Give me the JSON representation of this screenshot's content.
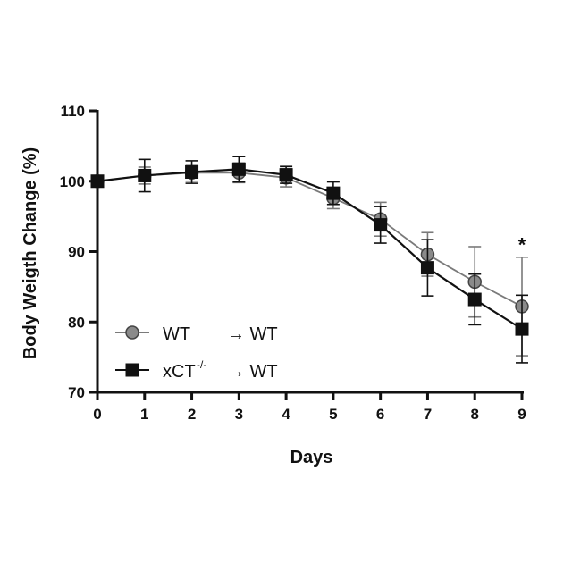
{
  "chart_data": {
    "type": "line",
    "title": "",
    "xlabel": "Days",
    "ylabel": "Body Weigth Change (%)",
    "xlim": [
      0,
      9
    ],
    "ylim": [
      70,
      110
    ],
    "x_ticks": [
      0,
      1,
      2,
      3,
      4,
      5,
      6,
      7,
      8,
      9
    ],
    "y_ticks": [
      70,
      80,
      90,
      100,
      110
    ],
    "grid": false,
    "legend_placement": "bottom-left",
    "x": [
      0,
      1,
      2,
      3,
      4,
      5,
      6,
      7,
      8,
      9
    ],
    "series": [
      {
        "name": "WT → WT",
        "legend_left": "WT",
        "legend_right": "→ WT",
        "legend_sup": "",
        "marker": "circle",
        "color": "#8a8a8a",
        "line_color": "#7a7a7a",
        "values": [
          100,
          100.8,
          101.2,
          101.2,
          100.5,
          97.6,
          94.6,
          89.6,
          85.7,
          82.2
        ],
        "err": [
          0,
          1.2,
          1.2,
          1.4,
          1.3,
          1.5,
          2.4,
          3.1,
          5.0,
          7.0
        ]
      },
      {
        "name": "xCT-/- → WT",
        "legend_left": "xCT",
        "legend_right": "→ WT",
        "legend_sup": "-/-",
        "marker": "square",
        "color": "#111111",
        "line_color": "#111111",
        "values": [
          100,
          100.8,
          101.3,
          101.7,
          100.9,
          98.3,
          93.8,
          87.7,
          83.2,
          79.0
        ],
        "err": [
          0,
          2.3,
          1.6,
          1.8,
          1.2,
          1.6,
          2.6,
          4.0,
          3.6,
          4.8
        ]
      }
    ],
    "annotations": [
      {
        "text": "*",
        "x": 9,
        "y": 91.5
      }
    ]
  }
}
